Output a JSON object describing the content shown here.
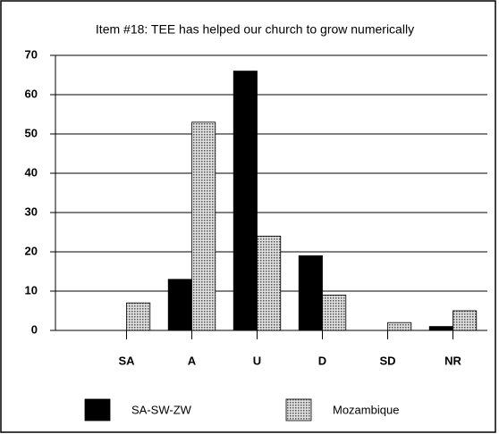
{
  "chart_data": {
    "type": "bar",
    "title": "Item #18: TEE has helped our church to grow numerically",
    "categories": [
      "SA",
      "A",
      "U",
      "D",
      "SD",
      "NR"
    ],
    "series": [
      {
        "name": "SA-SW-ZW",
        "color": "#000000",
        "values": [
          0,
          13,
          66,
          19,
          0,
          1
        ]
      },
      {
        "name": "Mozambique",
        "color": "#bdbdbd",
        "values": [
          7,
          53,
          24,
          9,
          2,
          5
        ]
      }
    ],
    "ylim": [
      0,
      70
    ],
    "yticks": [
      0,
      10,
      20,
      30,
      40,
      50,
      60,
      70
    ],
    "grid": true
  }
}
